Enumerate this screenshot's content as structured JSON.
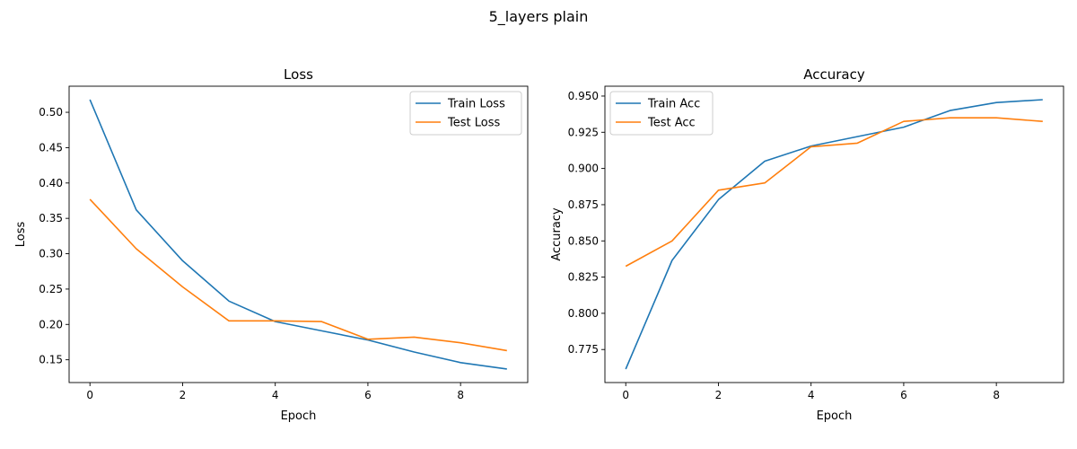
{
  "figure": {
    "suptitle": "5_layers plain"
  },
  "chart_data": [
    {
      "type": "line",
      "title": "Loss",
      "xlabel": "Epoch",
      "ylabel": "Loss",
      "xlim": [
        -0.45,
        9.45
      ],
      "ylim": [
        0.1178,
        0.5369
      ],
      "xticks": [
        0,
        2,
        4,
        6,
        8
      ],
      "xtick_labels": [
        "0",
        "2",
        "4",
        "6",
        "8"
      ],
      "yticks": [
        0.15,
        0.2,
        0.25,
        0.3,
        0.35,
        0.4,
        0.45,
        0.5
      ],
      "ytick_labels": [
        "0.15",
        "0.20",
        "0.25",
        "0.30",
        "0.35",
        "0.40",
        "0.45",
        "0.50"
      ],
      "grid": false,
      "legend_position": "top-right",
      "x": [
        0,
        1,
        2,
        3,
        4,
        5,
        6,
        7,
        8,
        9
      ],
      "series": [
        {
          "name": "Train Loss",
          "color": "#1f77b4",
          "values": [
            0.518,
            0.362,
            0.29,
            0.233,
            0.204,
            0.191,
            0.178,
            0.161,
            0.146,
            0.137
          ]
        },
        {
          "name": "Test Loss",
          "color": "#ff7f0e",
          "values": [
            0.377,
            0.307,
            0.253,
            0.205,
            0.205,
            0.204,
            0.179,
            0.182,
            0.174,
            0.163
          ]
        }
      ]
    },
    {
      "type": "line",
      "title": "Accuracy",
      "xlabel": "Epoch",
      "ylabel": "Accuracy",
      "xlim": [
        -0.45,
        9.45
      ],
      "ylim": [
        0.7522,
        0.9568
      ],
      "xticks": [
        0,
        2,
        4,
        6,
        8
      ],
      "xtick_labels": [
        "0",
        "2",
        "4",
        "6",
        "8"
      ],
      "yticks": [
        0.775,
        0.8,
        0.825,
        0.85,
        0.875,
        0.9,
        0.925,
        0.95
      ],
      "ytick_labels": [
        "0.775",
        "0.800",
        "0.825",
        "0.850",
        "0.875",
        "0.900",
        "0.925",
        "0.950"
      ],
      "grid": false,
      "legend_position": "top-left",
      "x": [
        0,
        1,
        2,
        3,
        4,
        5,
        6,
        7,
        8,
        9
      ],
      "series": [
        {
          "name": "Train Acc",
          "color": "#1f77b4",
          "values": [
            0.7615,
            0.8365,
            0.8785,
            0.905,
            0.9155,
            0.922,
            0.9285,
            0.94,
            0.9455,
            0.9475
          ]
        },
        {
          "name": "Test Acc",
          "color": "#ff7f0e",
          "values": [
            0.8325,
            0.85,
            0.885,
            0.89,
            0.915,
            0.9175,
            0.9325,
            0.935,
            0.935,
            0.9325
          ]
        }
      ]
    }
  ]
}
